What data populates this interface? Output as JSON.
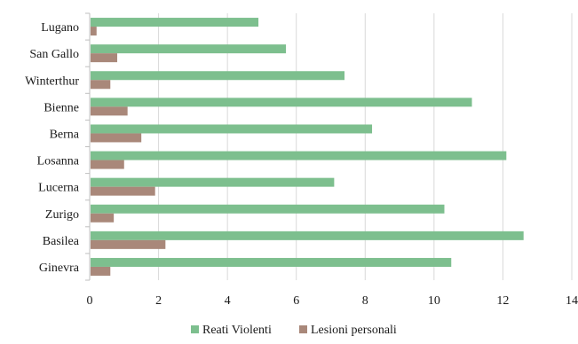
{
  "chart_data": {
    "type": "bar",
    "orientation": "horizontal",
    "categories": [
      "Lugano",
      "San Gallo",
      "Winterthur",
      "Bienne",
      "Berna",
      "Losanna",
      "Lucerna",
      "Zurigo",
      "Basilea",
      "Ginevra"
    ],
    "series": [
      {
        "name": "Reati Violenti",
        "color": "#7dbf8e",
        "values": [
          4.9,
          5.7,
          7.4,
          11.1,
          8.2,
          12.1,
          7.1,
          10.3,
          12.6,
          10.5
        ]
      },
      {
        "name": "Lesioni personali",
        "color": "#a9887a",
        "values": [
          0.2,
          0.8,
          0.6,
          1.1,
          1.5,
          1.0,
          1.9,
          0.7,
          2.2,
          0.6
        ]
      }
    ],
    "xlim": [
      0,
      14
    ],
    "xticks": [
      "0",
      "2",
      "4",
      "6",
      "8",
      "10",
      "12",
      "14"
    ],
    "grid": "vertical",
    "legend_position": "bottom"
  }
}
